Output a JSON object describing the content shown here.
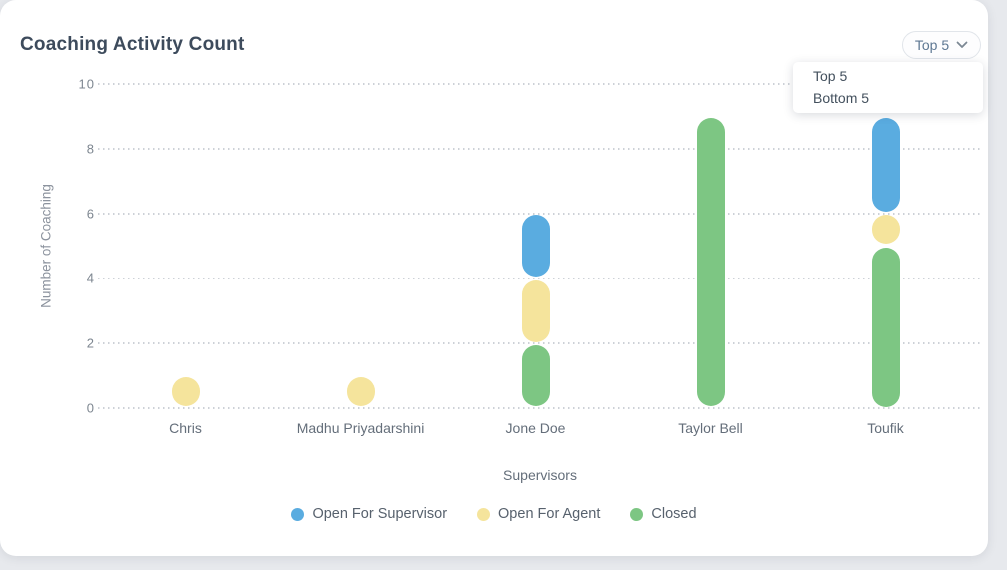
{
  "header": {
    "title": "Coaching Activity Count"
  },
  "dropdown": {
    "selected": "Top 5",
    "options": [
      "Top 5",
      "Bottom 5"
    ],
    "chevron_icon": "chevron-down"
  },
  "chart_data": {
    "type": "bar",
    "stacked": true,
    "title": "Coaching Activity Count",
    "categories": [
      "Chris",
      "Madhu Priyadarshini",
      "Jone Doe",
      "Taylor Bell",
      "Toufik"
    ],
    "series": [
      {
        "name": "Open For Supervisor",
        "color": "#5aace0",
        "values": [
          0,
          0,
          2,
          0,
          3
        ]
      },
      {
        "name": "Open For Agent",
        "color": "#f5e49c",
        "values": [
          1,
          1,
          2,
          0,
          1
        ]
      },
      {
        "name": "Closed",
        "color": "#7dc683",
        "values": [
          0,
          0,
          2,
          9,
          5
        ]
      }
    ],
    "stack_bottom_to_top": [
      "Closed",
      "Open For Agent",
      "Open For Supervisor"
    ],
    "xlabel": "Supervisors",
    "ylabel": "Number of Coaching",
    "ylim": [
      0,
      10
    ],
    "yticks": [
      0,
      2,
      4,
      6,
      8,
      10
    ],
    "grid": "horizontal dotted",
    "legend_position": "bottom"
  }
}
